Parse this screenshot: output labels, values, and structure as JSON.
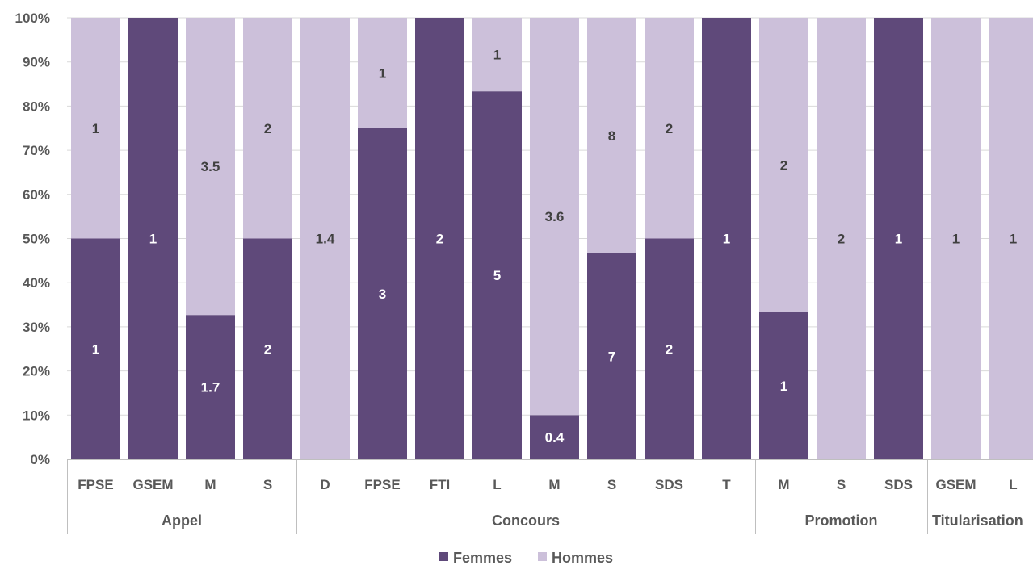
{
  "chart_data": {
    "type": "bar",
    "stacked": "100%",
    "ylim": [
      0,
      100
    ],
    "y_ticks": [
      "0%",
      "10%",
      "20%",
      "30%",
      "40%",
      "50%",
      "60%",
      "70%",
      "80%",
      "90%",
      "100%"
    ],
    "grid": true,
    "legend_position": "bottom",
    "groups": [
      {
        "name": "Appel",
        "categories": [
          "FPSE",
          "GSEM",
          "M",
          "S"
        ]
      },
      {
        "name": "Concours",
        "categories": [
          "D",
          "FPSE",
          "FTI",
          "L",
          "M",
          "S",
          "SDS",
          "T"
        ]
      },
      {
        "name": "Promotion",
        "categories": [
          "M",
          "S",
          "SDS"
        ]
      },
      {
        "name": "Titularisation",
        "categories": [
          "GSEM",
          "L"
        ]
      }
    ],
    "series": [
      {
        "name": "Femmes",
        "color": "#5f497a",
        "values": [
          1,
          1,
          1.7,
          2,
          0,
          3,
          2,
          5,
          0.4,
          7,
          2,
          1,
          1,
          0,
          1,
          0,
          0
        ],
        "labels": [
          "1",
          "1",
          "1.7",
          "2",
          "",
          "3",
          "2",
          "5",
          "0.4",
          "7",
          "2",
          "1",
          "1",
          "",
          "1",
          "",
          ""
        ]
      },
      {
        "name": "Hommes",
        "color": "#ccc0da",
        "values": [
          1,
          0,
          3.5,
          2,
          1.4,
          1,
          0,
          1,
          3.6,
          8,
          2,
          0,
          2,
          2,
          0,
          1,
          1
        ],
        "labels": [
          "1",
          "",
          "3.5",
          "2",
          "1.4",
          "1",
          "",
          "1",
          "3.6",
          "8",
          "2",
          "",
          "2",
          "2",
          "",
          "1",
          "1"
        ]
      }
    ]
  }
}
